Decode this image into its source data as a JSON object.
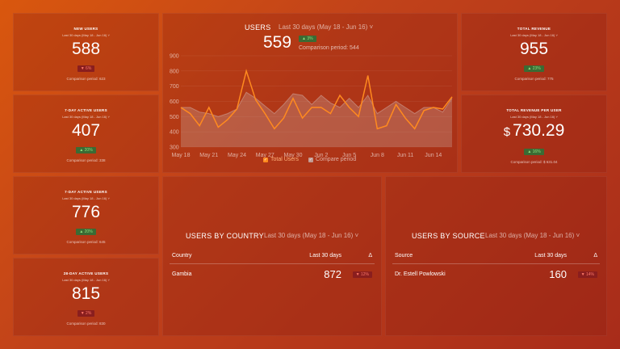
{
  "range_label": "Last 30 days (May 18 - Jun 16)",
  "range_label_chevron": "˅",
  "metrics": {
    "new_users": {
      "title": "NEW USERS",
      "value": "588",
      "change": "6%",
      "direction": "down",
      "comparison": "Comparison period: 623"
    },
    "seven_day": {
      "title": "7-DAY ACTIVE USERS",
      "value": "407",
      "change": "20%",
      "direction": "up",
      "comparison": "Comparison period: 338"
    },
    "fourteen_day": {
      "title": "7-DAY ACTIVE USERS",
      "value": "776",
      "change": "20%",
      "direction": "up",
      "comparison": "Comparison period: 645"
    },
    "twentyeight_day": {
      "title": "28-DAY ACTIVE USERS",
      "value": "815",
      "change": "2%",
      "direction": "down",
      "comparison": "Comparison period: 830"
    },
    "total_revenue": {
      "title": "TOTAL REVENUE",
      "value": "955",
      "change": "23%",
      "direction": "up",
      "comparison": "Comparison period: 775"
    },
    "revenue_per_user": {
      "title": "TOTAL REVENUE PER USER",
      "currency": "$",
      "value": "730.29",
      "change": "16%",
      "direction": "up",
      "comparison": "Comparison period: $ 631.04"
    }
  },
  "users_chart": {
    "title": "USERS",
    "range": "Last 30 days (May 18 - Jun 16)",
    "total": "559",
    "change": "3%",
    "comparison": "Comparison period: 544",
    "legend_total": "Total Users",
    "legend_compare": "Compare period",
    "colors": {
      "total": "#ff8a1f",
      "compare": "#b38a82"
    }
  },
  "chart_data": {
    "type": "line",
    "ylim": [
      300,
      900
    ],
    "yticks": [
      300,
      400,
      500,
      600,
      700,
      800,
      900
    ],
    "xtick_labels": [
      {
        "index": 0,
        "label": "May 18"
      },
      {
        "index": 3,
        "label": "May 21"
      },
      {
        "index": 6,
        "label": "May 24"
      },
      {
        "index": 9,
        "label": "May 27"
      },
      {
        "index": 12,
        "label": "May 30"
      },
      {
        "index": 15,
        "label": "Jun 2"
      },
      {
        "index": 18,
        "label": "Jun 5"
      },
      {
        "index": 21,
        "label": "Jun 8"
      },
      {
        "index": 24,
        "label": "Jun 11"
      },
      {
        "index": 27,
        "label": "Jun 14"
      }
    ],
    "series": [
      {
        "name": "Total Users",
        "values": [
          560,
          520,
          440,
          560,
          430,
          480,
          550,
          800,
          610,
          520,
          420,
          490,
          620,
          490,
          560,
          560,
          520,
          640,
          560,
          500,
          770,
          420,
          440,
          580,
          490,
          420,
          540,
          560,
          550,
          630
        ]
      },
      {
        "name": "Compare period",
        "values": [
          560,
          560,
          530,
          520,
          500,
          520,
          550,
          660,
          620,
          570,
          520,
          580,
          650,
          640,
          580,
          640,
          590,
          560,
          620,
          560,
          640,
          520,
          560,
          600,
          560,
          520,
          560,
          560,
          530,
          620
        ]
      }
    ]
  },
  "users_by_country": {
    "title": "USERS BY COUNTRY",
    "range": "Last 30 days (May 18 - Jun 16)",
    "headers": [
      "Country",
      "Last 30 days",
      "Δ"
    ],
    "rows": [
      {
        "name": "Gambia",
        "value": "872",
        "change": "12%",
        "direction": "down"
      }
    ]
  },
  "users_by_source": {
    "title": "USERS BY SOURCE",
    "range": "Last 30 days (May 18 - Jun 16)",
    "headers": [
      "Source",
      "Last 30 days",
      "Δ"
    ],
    "rows": [
      {
        "name": "Dr. Estell Powlowski",
        "value": "160",
        "change": "14%",
        "direction": "down"
      }
    ]
  }
}
